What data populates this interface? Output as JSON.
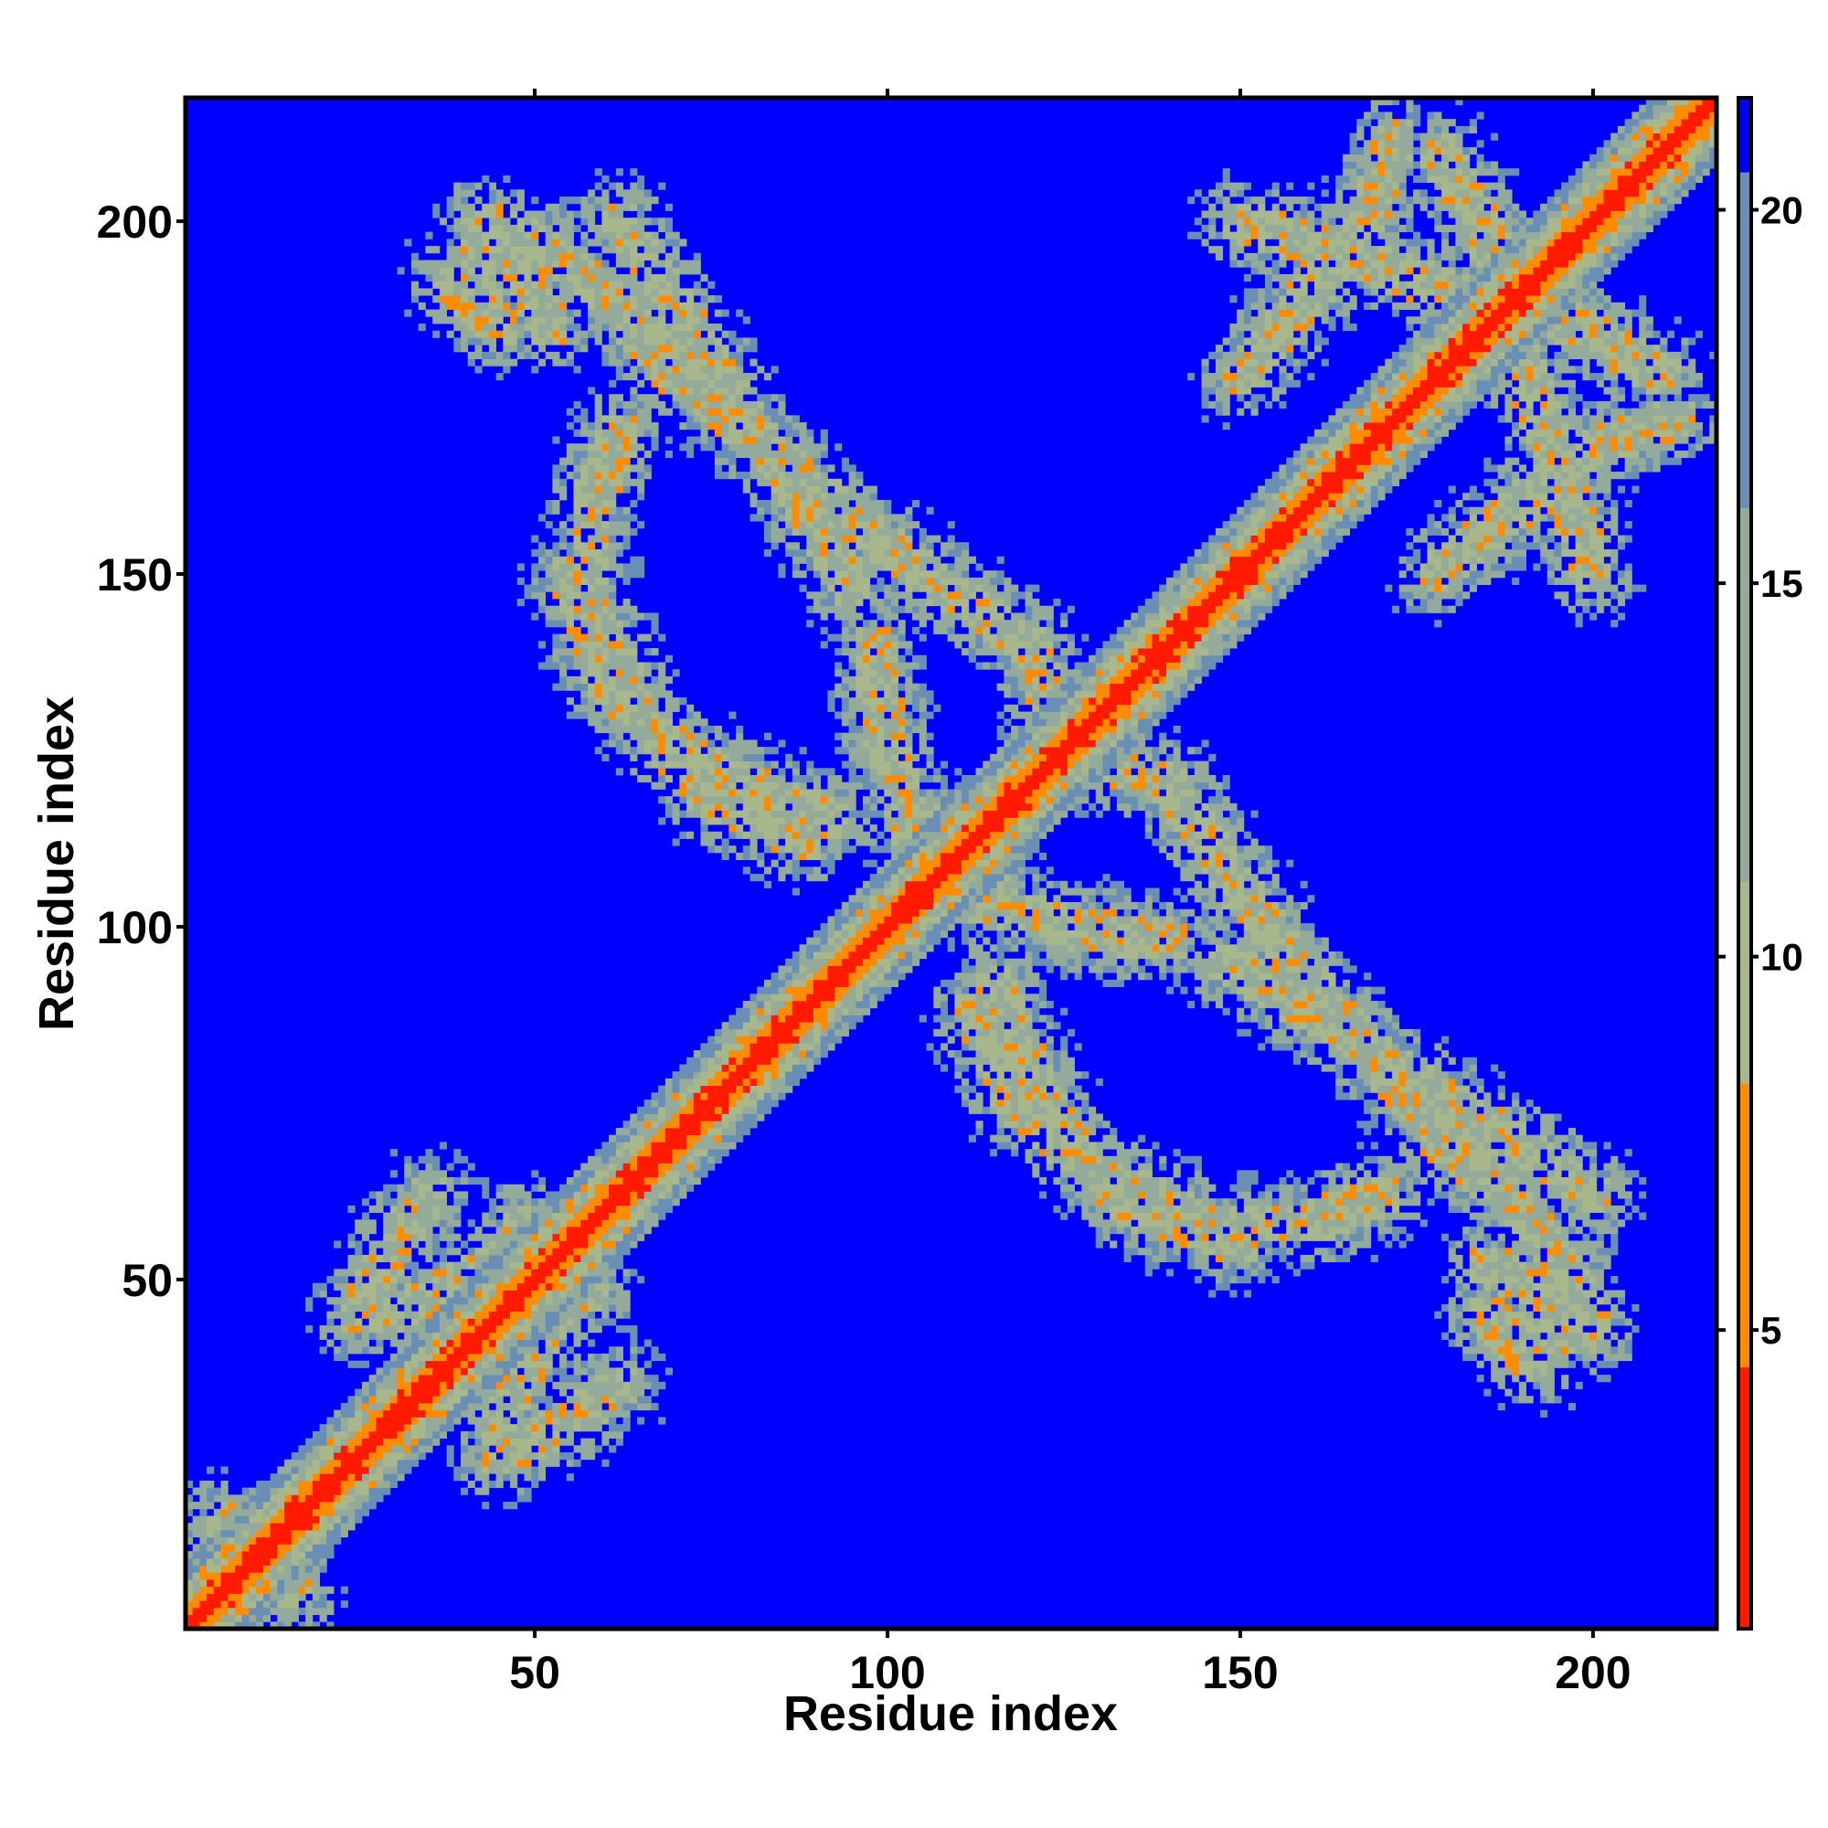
{
  "chart_data": {
    "type": "heatmap",
    "title": "",
    "xlabel": "Residue index",
    "ylabel": "Residue index",
    "n_residues": 217,
    "xlim": [
      1,
      217
    ],
    "ylim": [
      1,
      217
    ],
    "x_ticks": [
      50,
      100,
      150,
      200
    ],
    "y_ticks": [
      50,
      100,
      150,
      200
    ],
    "colorbar": {
      "ticks": [
        5,
        10,
        15,
        20
      ],
      "range": [
        1,
        21.5
      ],
      "colors": [
        {
          "from": 1,
          "to": 4.5,
          "color": "#ff1a00"
        },
        {
          "from": 4.5,
          "to": 8.3,
          "color": "#ff8c00"
        },
        {
          "from": 8.3,
          "to": 11,
          "color": "#a8b88c"
        },
        {
          "from": 11,
          "to": 16,
          "color": "#94aa9a"
        },
        {
          "from": 16,
          "to": 20.5,
          "color": "#6a8fb4"
        },
        {
          "from": 20.5,
          "to": 21.5,
          "color": "#0000ff"
        }
      ]
    },
    "background_color": "#0000ff",
    "diagonal_band": {
      "core_width": 3,
      "orange_width": 6,
      "green_width": 12
    },
    "contact_regions": [
      {
        "x1": 170,
        "y1": 65,
        "x2": 190,
        "y2": 85,
        "value": 10,
        "note": "arc"
      },
      {
        "x1": 56,
        "y1": 121,
        "x2": 67,
        "y2": 163,
        "value": 10
      },
      {
        "x1": 78,
        "y1": 170,
        "x2": 160,
        "y2": 202,
        "value": 10
      },
      {
        "x1": 5,
        "y1": 5,
        "x2": 18,
        "y2": 18,
        "value": 12
      }
    ]
  }
}
